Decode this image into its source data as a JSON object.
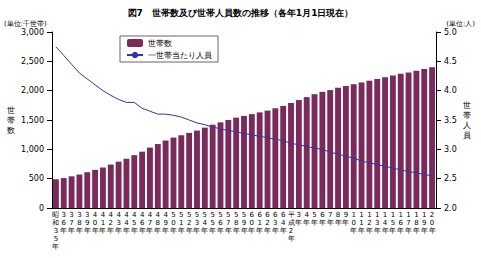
{
  "chart_data": {
    "type": "bar",
    "title": "図7　世帯数及び世帯人員数の推移（各年1月1日現在）",
    "ylabel": "世帯数",
    "y2label": "世帯人員",
    "y_unit": "(単位:千世帯)",
    "y2_unit": "(単位:人)",
    "categories": [
      "昭和35年",
      "36年",
      "37年",
      "38年",
      "39年",
      "40年",
      "41年",
      "42年",
      "43年",
      "44年",
      "45年",
      "46年",
      "47年",
      "48年",
      "49年",
      "50年",
      "51年",
      "52年",
      "53年",
      "54年",
      "55年",
      "56年",
      "57年",
      "58年",
      "59年",
      "60年",
      "61年",
      "62年",
      "63年",
      "64年",
      "平成2年",
      "3年",
      "4年",
      "5年",
      "6年",
      "7年",
      "8年",
      "9年",
      "10年",
      "11年",
      "12年",
      "13年",
      "14年",
      "15年",
      "16年",
      "17年",
      "18年",
      "19年",
      "20年"
    ],
    "series": [
      {
        "name": "世帯数",
        "type": "bar",
        "color": "#7b2a5c",
        "values": [
          490,
          510,
          540,
          570,
          610,
          650,
          690,
          740,
          790,
          840,
          900,
          960,
          1030,
          1090,
          1150,
          1200,
          1240,
          1280,
          1320,
          1370,
          1420,
          1460,
          1500,
          1540,
          1570,
          1600,
          1630,
          1660,
          1700,
          1740,
          1790,
          1840,
          1890,
          1940,
          1980,
          2010,
          2050,
          2080,
          2110,
          2140,
          2170,
          2200,
          2230,
          2260,
          2290,
          2310,
          2340,
          2370,
          2400
        ]
      },
      {
        "name": "一世帯当たり人員",
        "type": "line",
        "color": "#3333aa",
        "axis": "y2",
        "marker": "none",
        "values": [
          4.75,
          4.6,
          4.45,
          4.3,
          4.2,
          4.1,
          4.0,
          3.92,
          3.85,
          3.8,
          3.8,
          3.7,
          3.65,
          3.6,
          3.6,
          3.58,
          3.55,
          3.5,
          3.45,
          3.42,
          3.38,
          3.35,
          3.32,
          3.3,
          3.27,
          3.25,
          3.22,
          3.2,
          3.17,
          3.15,
          3.1,
          3.08,
          3.05,
          3.02,
          3.0,
          2.95,
          2.92,
          2.88,
          2.85,
          2.8,
          2.77,
          2.74,
          2.71,
          2.68,
          2.65,
          2.62,
          2.6,
          2.57,
          2.55
        ]
      }
    ],
    "ylim": [
      0,
      3000
    ],
    "yticks": [
      0,
      500,
      {
        "value": 1000,
        "label": "1,000"
      },
      {
        "value": 1500,
        "label": "1,500"
      },
      {
        "value": 2000,
        "label": "2,000"
      },
      {
        "value": 2500,
        "label": "2,500"
      },
      {
        "value": 3000,
        "label": "3,000"
      }
    ],
    "y2lim": [
      2,
      5
    ],
    "y2ticks": [
      {
        "value": 2,
        "label": "2.0"
      },
      {
        "value": 2.5,
        "label": "2.5"
      },
      {
        "value": 3,
        "label": "3.0"
      },
      {
        "value": 3.5,
        "label": "3.5"
      },
      {
        "value": 4,
        "label": "4.0"
      },
      {
        "value": 4.5,
        "label": "4.5"
      },
      {
        "value": 5,
        "label": "5.0"
      }
    ],
    "grid": false,
    "legend": "top"
  }
}
